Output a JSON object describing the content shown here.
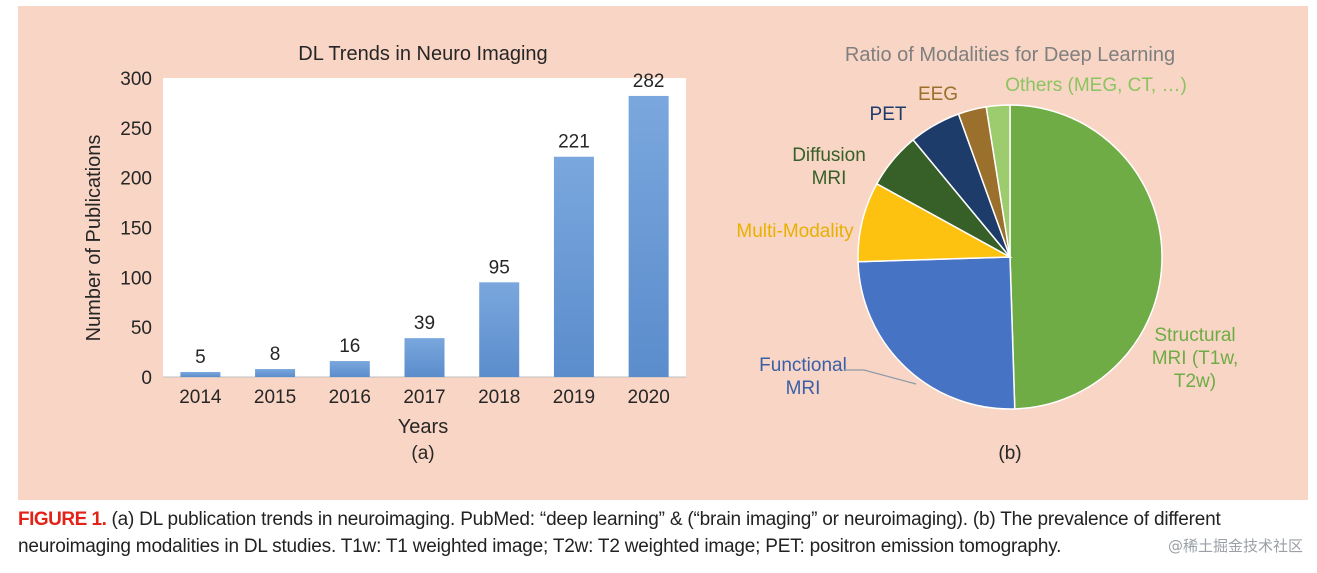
{
  "chart_data": [
    {
      "type": "bar",
      "title": "DL Trends in Neuro Imaging",
      "xlabel": "Years",
      "ylabel": "Number of Publications",
      "categories": [
        "2014",
        "2015",
        "2016",
        "2017",
        "2018",
        "2019",
        "2020"
      ],
      "values": [
        5,
        8,
        16,
        39,
        95,
        221,
        282
      ],
      "ylim": [
        0,
        300
      ],
      "yticks": [
        0,
        50,
        100,
        150,
        200,
        250,
        300
      ],
      "grid": false,
      "panel_label": "(a)",
      "bar_color": "#6f9fd8"
    },
    {
      "type": "pie",
      "title": "Ratio of Modalities for Deep Learning",
      "panel_label": "(b)",
      "slices": [
        {
          "label": "Structural MRI (T1w, T2w)",
          "lines": [
            "Structural",
            "MRI (T1w,",
            "T2w)"
          ],
          "value": 49.5,
          "color": "#6fac46",
          "label_color": "#6fac46"
        },
        {
          "label": "Functional MRI",
          "lines": [
            "Functional",
            "MRI"
          ],
          "value": 25.0,
          "color": "#4673c4",
          "label_color": "#3a5fa8"
        },
        {
          "label": "Multi-Modality",
          "lines": [
            "Multi-Modality"
          ],
          "value": 8.5,
          "color": "#fdc110",
          "label_color": "#e8b100"
        },
        {
          "label": "Diffusion MRI",
          "lines": [
            "Diffusion",
            "MRI"
          ],
          "value": 6.0,
          "color": "#376028",
          "label_color": "#376028"
        },
        {
          "label": "PET",
          "lines": [
            "PET"
          ],
          "value": 5.5,
          "color": "#1e3c6a",
          "label_color": "#1e3c6a"
        },
        {
          "label": "EEG",
          "lines": [
            "EEG"
          ],
          "value": 3.0,
          "color": "#9b6f2c",
          "label_color": "#9b6f2c"
        },
        {
          "label": "Others (MEG, CT, …)",
          "lines": [
            "Others (MEG, CT, …)"
          ],
          "value": 2.5,
          "color": "#9ccc6e",
          "label_color": "#8cc460"
        }
      ]
    }
  ],
  "caption": {
    "label": "FIGURE 1.",
    "text": " (a) DL publication trends in neuroimaging. PubMed: “deep learning” & (“brain imaging” or neuroimaging). (b) The prevalence of different neuroimaging modalities in DL studies. T1w: T1 weighted image; T2w: T2 weighted image; PET: positron emission tomography."
  },
  "watermark": "@稀土掘金技术社区"
}
